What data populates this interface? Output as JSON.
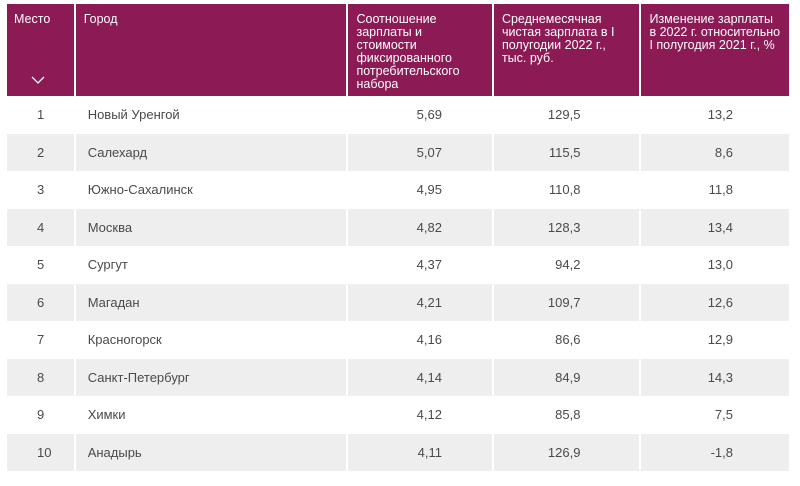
{
  "table": {
    "headers": {
      "rank": "Место",
      "city": "Город",
      "ratio": "Соотношение зарплаты и стоимости фиксированного потребительского набора",
      "salary": "Среднемесячная чистая зарплата в I полугодии 2022 г., тыс. руб.",
      "change": "Изменение зарплаты в 2022 г. относительно I полугодия 2021 г., %"
    },
    "sort_icon": "chevron-down-icon",
    "header_color": "#8b1a55",
    "stripe_color": "#eeeeee",
    "rows": [
      {
        "rank": "1",
        "city": "Новый Уренгой",
        "ratio": "5,69",
        "salary": "129,5",
        "change": "13,2"
      },
      {
        "rank": "2",
        "city": "Салехард",
        "ratio": "5,07",
        "salary": "115,5",
        "change": "8,6"
      },
      {
        "rank": "3",
        "city": "Южно-Сахалинск",
        "ratio": "4,95",
        "salary": "110,8",
        "change": "11,8"
      },
      {
        "rank": "4",
        "city": "Москва",
        "ratio": "4,82",
        "salary": "128,3",
        "change": "13,4"
      },
      {
        "rank": "5",
        "city": "Сургут",
        "ratio": "4,37",
        "salary": "94,2",
        "change": "13,0"
      },
      {
        "rank": "6",
        "city": "Магадан",
        "ratio": "4,21",
        "salary": "109,7",
        "change": "12,6"
      },
      {
        "rank": "7",
        "city": "Красногорск",
        "ratio": "4,16",
        "salary": "86,6",
        "change": "12,9"
      },
      {
        "rank": "8",
        "city": "Санкт-Петербург",
        "ratio": "4,14",
        "salary": "84,9",
        "change": "14,3"
      },
      {
        "rank": "9",
        "city": "Химки",
        "ratio": "4,12",
        "salary": "85,8",
        "change": "7,5"
      },
      {
        "rank": "10",
        "city": "Анадырь",
        "ratio": "4,11",
        "salary": "126,9",
        "change": "-1,8"
      }
    ]
  }
}
